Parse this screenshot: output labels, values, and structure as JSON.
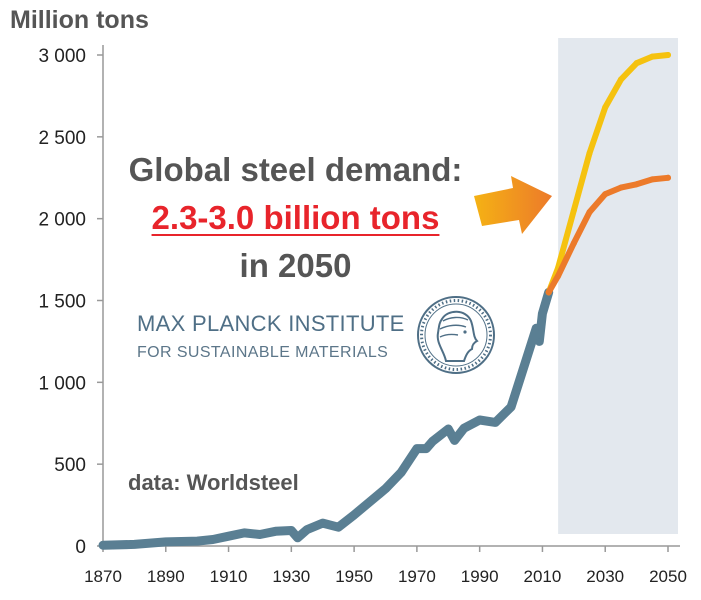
{
  "chart_data": {
    "type": "line",
    "ylabel": "Million tons",
    "xlim": [
      1870,
      2050
    ],
    "ylim": [
      0,
      3000
    ],
    "x_ticks": [
      "1870",
      "1890",
      "1910",
      "1930",
      "1950",
      "1970",
      "1990",
      "2010",
      "2030",
      "2050"
    ],
    "y_ticks": [
      "0",
      "500",
      "1 000",
      "1 500",
      "2 000",
      "2 500",
      "3 000"
    ],
    "grid": false,
    "projection_shaded_range": [
      2015,
      2050
    ],
    "series": [
      {
        "name": "",
        "color": "#5a7f93",
        "x": [
          1870,
          1880,
          1890,
          1900,
          1905,
          1910,
          1915,
          1920,
          1925,
          1930,
          1932,
          1935,
          1940,
          1945,
          1950,
          1955,
          1960,
          1965,
          1970,
          1973,
          1975,
          1980,
          1982,
          1985,
          1990,
          1995,
          2000,
          2005,
          2008,
          2009,
          2010,
          2012
        ],
        "y": [
          5,
          10,
          25,
          30,
          40,
          60,
          80,
          70,
          90,
          95,
          50,
          100,
          140,
          115,
          190,
          270,
          350,
          450,
          595,
          595,
          640,
          715,
          645,
          720,
          770,
          755,
          850,
          1150,
          1330,
          1250,
          1420,
          1550
        ]
      },
      {
        "name": "",
        "color": "#f5c20f",
        "x": [
          2012,
          2015,
          2020,
          2025,
          2030,
          2035,
          2040,
          2045,
          2050
        ],
        "y": [
          1550,
          1700,
          2050,
          2400,
          2680,
          2850,
          2950,
          2990,
          3000
        ]
      },
      {
        "name": "",
        "color": "#ec7a2a",
        "x": [
          2012,
          2015,
          2020,
          2025,
          2030,
          2035,
          2040,
          2045,
          2050
        ],
        "y": [
          1550,
          1650,
          1850,
          2040,
          2150,
          2190,
          2210,
          2240,
          2250
        ]
      }
    ]
  },
  "annotations": {
    "headline_line1": "Global steel demand:",
    "headline_line2": "2.3-3.0 billion tons",
    "headline_line3": "in 2050",
    "institute_line1": "MAX PLANCK INSTITUTE",
    "institute_line2": "FOR SUSTAINABLE MATERIALS",
    "source": "data: Worldsteel"
  },
  "colors": {
    "headline": "#555555",
    "highlight": "#e8242b",
    "institute": "#4f6f86",
    "projection_band": "#e3e8ee",
    "arrow_start": "#f5b214",
    "arrow_end": "#ec7a2a"
  }
}
